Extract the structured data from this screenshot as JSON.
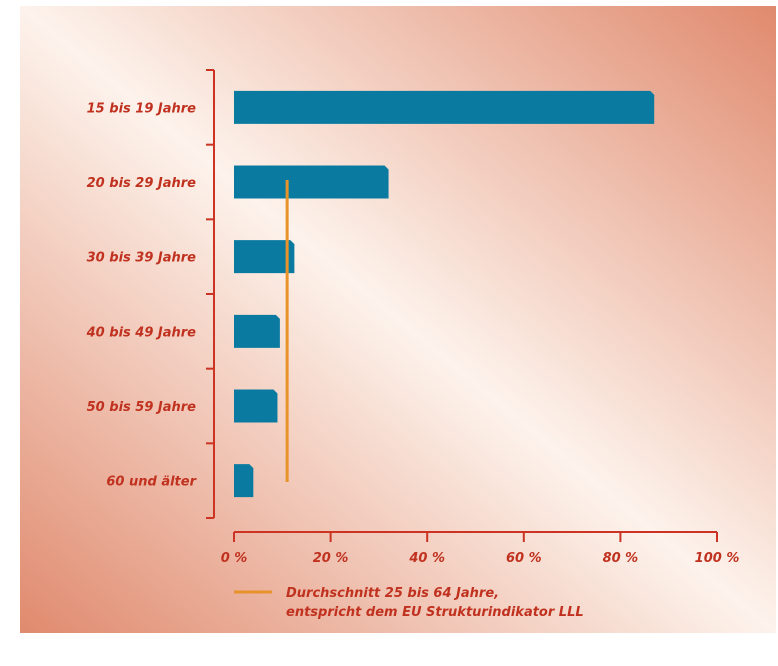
{
  "chart_data": {
    "type": "bar",
    "orientation": "horizontal",
    "categories": [
      "15 bis 19 Jahre",
      "20 bis 29 Jahre",
      "30 bis 39 Jahre",
      "40 bis 49 Jahre",
      "50 bis 59 Jahre",
      "60 und älter"
    ],
    "values": [
      87,
      32,
      12.5,
      9.5,
      9,
      4
    ],
    "xlim": [
      0,
      100
    ],
    "x_ticks": [
      0,
      20,
      40,
      60,
      80,
      100
    ],
    "x_tick_labels": [
      "0 %",
      "20 %",
      "40 %",
      "60 %",
      "80 %",
      "100 %"
    ],
    "reference_line": {
      "value": 11,
      "label_line1": "Durchschnitt 25 bis 64 Jahre,",
      "label_line2": "entspricht dem EU Strukturindikator LLL"
    },
    "grid": false,
    "legend_position": "bottom-left"
  },
  "colors": {
    "bar": "#0a7aa0",
    "axis": "#cc3322",
    "label": "#c0311f",
    "reference_line": "#e8932a",
    "background_corner": "#e08a6e",
    "background_center": "#fdf2ea"
  }
}
